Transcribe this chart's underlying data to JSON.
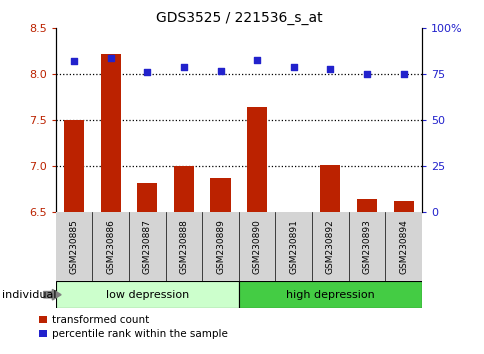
{
  "title": "GDS3525 / 221536_s_at",
  "categories": [
    "GSM230885",
    "GSM230886",
    "GSM230887",
    "GSM230888",
    "GSM230889",
    "GSM230890",
    "GSM230891",
    "GSM230892",
    "GSM230893",
    "GSM230894"
  ],
  "red_values": [
    7.5,
    8.22,
    6.82,
    7.0,
    6.87,
    7.65,
    6.5,
    7.02,
    6.65,
    6.62
  ],
  "blue_values": [
    82,
    84,
    76,
    79,
    77,
    83,
    79,
    78,
    75,
    75
  ],
  "ylim_left": [
    6.5,
    8.5
  ],
  "ylim_right": [
    0,
    100
  ],
  "yticks_left": [
    6.5,
    7.0,
    7.5,
    8.0,
    8.5
  ],
  "yticks_right": [
    0,
    25,
    50,
    75,
    100
  ],
  "ytick_labels_right": [
    "0",
    "25",
    "50",
    "75",
    "100%"
  ],
  "group1": "low depression",
  "group2": "high depression",
  "group1_count": 5,
  "group2_count": 5,
  "bar_color": "#bb2200",
  "dot_color": "#2222cc",
  "group1_color": "#ccffcc",
  "group2_color": "#44cc44",
  "gray_color": "#d4d4d4",
  "xlabel_individual": "individual",
  "legend_red": "transformed count",
  "legend_blue": "percentile rank within the sample",
  "bar_bottom": 6.5,
  "dotted_lines": [
    7.0,
    7.5,
    8.0
  ]
}
